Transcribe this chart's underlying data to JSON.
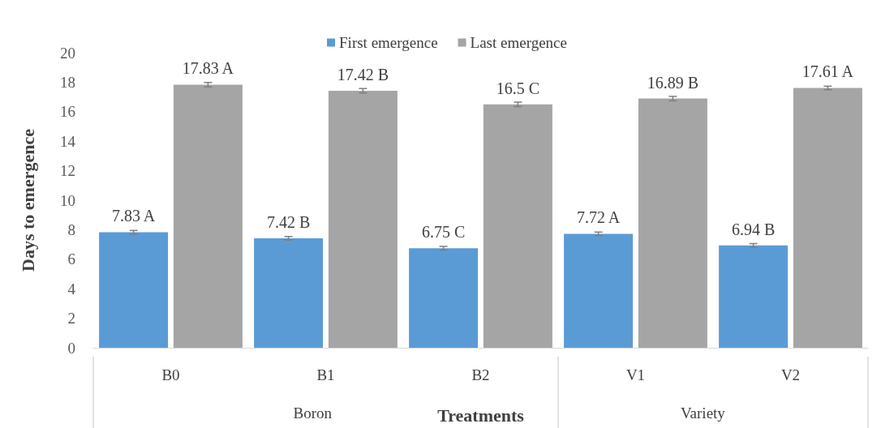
{
  "chart_data": {
    "type": "bar",
    "xlabel": "Treatments",
    "ylabel": "Days to emergence",
    "categories": [
      "B0",
      "B1",
      "B2",
      "V1",
      "V2"
    ],
    "series": [
      {
        "name": "First emergence",
        "color": "#5b9bd5",
        "values": [
          7.83,
          7.42,
          6.75,
          7.72,
          6.94
        ],
        "errors": [
          0.12,
          0.12,
          0.12,
          0.12,
          0.12
        ],
        "value_labels": [
          "7.83 A",
          "7.42 B",
          "6.75 C",
          "7.72 A",
          "6.94 B"
        ]
      },
      {
        "name": "Last emergence",
        "color": "#a5a5a5",
        "values": [
          17.83,
          17.42,
          16.5,
          16.89,
          17.61
        ],
        "errors": [
          0.15,
          0.15,
          0.15,
          0.15,
          0.12
        ],
        "value_labels": [
          "17.83 A",
          "17.42 B",
          "16.5 C",
          "16.89 B",
          "17.61 A"
        ]
      }
    ],
    "annotations": [
      "Boron",
      "Variety"
    ],
    "ylim": [
      0,
      20
    ],
    "yticks": [
      0,
      2,
      4,
      6,
      8,
      10,
      12,
      14,
      16,
      18,
      20
    ],
    "grid": false,
    "legend": "top"
  }
}
